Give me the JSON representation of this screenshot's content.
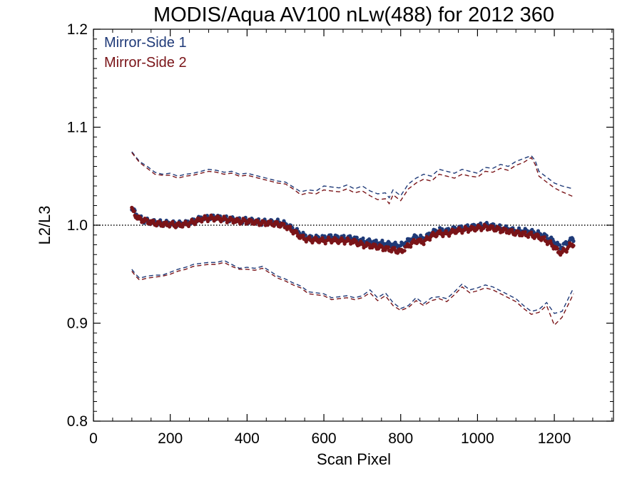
{
  "chart_data": {
    "type": "scatter",
    "title": "MODIS/Aqua AV100 nLw(488) for 2012 360",
    "xlabel": "Scan Pixel",
    "ylabel": "L2/L3",
    "xlim": [
      0,
      1354
    ],
    "ylim": [
      0.8,
      1.2
    ],
    "x_ticks": [
      "0",
      "200",
      "400",
      "600",
      "800",
      "1000",
      "1200"
    ],
    "y_ticks": [
      "0.8",
      "0.9",
      "1.0",
      "1.1",
      "1.2"
    ],
    "reference_line": 1.0,
    "grid": false,
    "legend_position": "top-left",
    "colors": {
      "ms1": "#1f3a78",
      "ms2": "#7a1418",
      "reference": "#000000"
    },
    "series": [
      {
        "name": "Mirror-Side 1",
        "color": "#1f3a78",
        "mean": {
          "x": [
            100,
            110,
            120,
            140,
            160,
            180,
            200,
            220,
            240,
            260,
            280,
            300,
            320,
            340,
            360,
            380,
            400,
            420,
            440,
            460,
            480,
            500,
            520,
            540,
            560,
            580,
            600,
            620,
            640,
            660,
            680,
            700,
            720,
            740,
            760,
            780,
            800,
            820,
            840,
            860,
            880,
            900,
            920,
            940,
            960,
            980,
            1000,
            1020,
            1040,
            1060,
            1080,
            1100,
            1120,
            1140,
            1160,
            1180,
            1200,
            1210,
            1220,
            1230,
            1240,
            1250
          ],
          "y": [
            1.017,
            1.012,
            1.007,
            1.004,
            1.003,
            1.002,
            1.002,
            1.001,
            1.002,
            1.004,
            1.007,
            1.008,
            1.008,
            1.007,
            1.006,
            1.005,
            1.005,
            1.004,
            1.003,
            1.003,
            1.003,
            1.001,
            0.996,
            0.991,
            0.987,
            0.987,
            0.987,
            0.988,
            0.987,
            0.987,
            0.986,
            0.984,
            0.983,
            0.982,
            0.981,
            0.98,
            0.979,
            0.984,
            0.988,
            0.986,
            0.992,
            0.995,
            0.994,
            0.996,
            0.997,
            0.998,
            0.999,
            1.0,
            0.999,
            0.997,
            0.996,
            0.994,
            0.994,
            0.993,
            0.991,
            0.988,
            0.983,
            0.979,
            0.978,
            0.981,
            0.984,
            0.986
          ]
        },
        "upper": {
          "x": [
            100,
            120,
            140,
            160,
            180,
            200,
            220,
            240,
            260,
            280,
            300,
            320,
            340,
            360,
            380,
            400,
            420,
            440,
            460,
            480,
            500,
            520,
            540,
            560,
            580,
            600,
            620,
            640,
            660,
            680,
            700,
            720,
            740,
            760,
            770,
            780,
            800,
            820,
            840,
            860,
            880,
            900,
            920,
            940,
            960,
            980,
            1000,
            1020,
            1040,
            1060,
            1080,
            1100,
            1120,
            1140,
            1150,
            1160,
            1180,
            1200,
            1220,
            1250
          ],
          "y": [
            1.075,
            1.065,
            1.06,
            1.054,
            1.052,
            1.053,
            1.05,
            1.052,
            1.053,
            1.055,
            1.057,
            1.056,
            1.054,
            1.055,
            1.052,
            1.053,
            1.051,
            1.049,
            1.047,
            1.045,
            1.044,
            1.039,
            1.034,
            1.036,
            1.035,
            1.04,
            1.039,
            1.038,
            1.041,
            1.037,
            1.04,
            1.035,
            1.032,
            1.033,
            1.028,
            1.036,
            1.03,
            1.042,
            1.048,
            1.052,
            1.05,
            1.057,
            1.055,
            1.053,
            1.057,
            1.055,
            1.053,
            1.059,
            1.058,
            1.062,
            1.06,
            1.065,
            1.068,
            1.071,
            1.066,
            1.055,
            1.049,
            1.043,
            1.04,
            1.037
          ]
        },
        "lower": {
          "x": [
            100,
            110,
            120,
            140,
            160,
            180,
            200,
            220,
            240,
            260,
            280,
            300,
            320,
            340,
            360,
            380,
            400,
            420,
            440,
            460,
            480,
            500,
            520,
            540,
            560,
            580,
            600,
            620,
            640,
            660,
            680,
            700,
            720,
            740,
            760,
            780,
            800,
            820,
            840,
            860,
            880,
            900,
            920,
            940,
            960,
            980,
            1000,
            1020,
            1040,
            1060,
            1080,
            1100,
            1120,
            1140,
            1160,
            1180,
            1200,
            1220,
            1250
          ],
          "y": [
            0.955,
            0.95,
            0.946,
            0.948,
            0.949,
            0.949,
            0.952,
            0.955,
            0.957,
            0.96,
            0.961,
            0.962,
            0.962,
            0.964,
            0.96,
            0.956,
            0.957,
            0.956,
            0.958,
            0.953,
            0.948,
            0.945,
            0.941,
            0.938,
            0.932,
            0.931,
            0.93,
            0.926,
            0.927,
            0.928,
            0.926,
            0.928,
            0.934,
            0.926,
            0.931,
            0.921,
            0.915,
            0.918,
            0.926,
            0.92,
            0.926,
            0.927,
            0.925,
            0.932,
            0.94,
            0.934,
            0.936,
            0.939,
            0.937,
            0.933,
            0.929,
            0.925,
            0.918,
            0.912,
            0.914,
            0.921,
            0.91,
            0.912,
            0.936
          ]
        }
      },
      {
        "name": "Mirror-Side 2",
        "color": "#7a1418",
        "mean": {
          "x": [
            100,
            110,
            120,
            140,
            160,
            180,
            200,
            220,
            240,
            260,
            280,
            300,
            320,
            340,
            360,
            380,
            400,
            420,
            440,
            460,
            480,
            500,
            520,
            540,
            560,
            580,
            600,
            620,
            640,
            660,
            680,
            700,
            720,
            740,
            760,
            780,
            800,
            820,
            840,
            860,
            880,
            900,
            920,
            940,
            960,
            980,
            1000,
            1020,
            1040,
            1060,
            1080,
            1100,
            1120,
            1140,
            1160,
            1180,
            1200,
            1210,
            1220,
            1230,
            1240,
            1250
          ],
          "y": [
            1.016,
            1.01,
            1.006,
            1.004,
            1.002,
            1.001,
            1.001,
            1.0,
            1.001,
            1.003,
            1.006,
            1.007,
            1.007,
            1.006,
            1.005,
            1.004,
            1.004,
            1.003,
            1.002,
            1.002,
            1.001,
            0.999,
            0.994,
            0.988,
            0.985,
            0.985,
            0.984,
            0.985,
            0.984,
            0.984,
            0.983,
            0.98,
            0.979,
            0.978,
            0.976,
            0.975,
            0.973,
            0.979,
            0.984,
            0.983,
            0.989,
            0.992,
            0.991,
            0.994,
            0.995,
            0.996,
            0.997,
            0.998,
            0.997,
            0.995,
            0.994,
            0.992,
            0.991,
            0.99,
            0.988,
            0.984,
            0.978,
            0.973,
            0.972,
            0.975,
            0.979,
            0.981
          ]
        },
        "upper": {
          "x": [
            100,
            120,
            140,
            160,
            180,
            200,
            220,
            240,
            260,
            280,
            300,
            320,
            340,
            360,
            380,
            400,
            420,
            440,
            460,
            480,
            500,
            520,
            540,
            560,
            580,
            600,
            620,
            640,
            660,
            680,
            700,
            720,
            740,
            760,
            770,
            780,
            800,
            820,
            840,
            860,
            880,
            900,
            920,
            940,
            960,
            980,
            1000,
            1020,
            1040,
            1060,
            1080,
            1100,
            1120,
            1140,
            1150,
            1160,
            1180,
            1200,
            1220,
            1250
          ],
          "y": [
            1.074,
            1.064,
            1.058,
            1.052,
            1.051,
            1.051,
            1.048,
            1.05,
            1.051,
            1.053,
            1.055,
            1.054,
            1.052,
            1.053,
            1.05,
            1.051,
            1.049,
            1.047,
            1.045,
            1.043,
            1.042,
            1.037,
            1.031,
            1.033,
            1.032,
            1.036,
            1.035,
            1.034,
            1.037,
            1.033,
            1.035,
            1.03,
            1.026,
            1.027,
            1.022,
            1.031,
            1.025,
            1.037,
            1.043,
            1.047,
            1.045,
            1.052,
            1.05,
            1.048,
            1.052,
            1.05,
            1.049,
            1.055,
            1.054,
            1.058,
            1.056,
            1.061,
            1.064,
            1.069,
            1.062,
            1.05,
            1.044,
            1.038,
            1.034,
            1.029
          ]
        },
        "lower": {
          "x": [
            100,
            110,
            120,
            140,
            160,
            180,
            200,
            220,
            240,
            260,
            280,
            300,
            320,
            340,
            360,
            380,
            400,
            420,
            440,
            460,
            480,
            500,
            520,
            540,
            560,
            580,
            600,
            620,
            640,
            660,
            680,
            700,
            720,
            740,
            760,
            780,
            800,
            820,
            840,
            860,
            880,
            900,
            920,
            940,
            960,
            980,
            1000,
            1020,
            1040,
            1060,
            1080,
            1100,
            1120,
            1140,
            1160,
            1180,
            1200,
            1220,
            1250
          ],
          "y": [
            0.953,
            0.948,
            0.944,
            0.946,
            0.947,
            0.948,
            0.95,
            0.953,
            0.955,
            0.958,
            0.959,
            0.96,
            0.96,
            0.962,
            0.958,
            0.955,
            0.955,
            0.954,
            0.956,
            0.951,
            0.946,
            0.943,
            0.939,
            0.936,
            0.93,
            0.929,
            0.928,
            0.924,
            0.925,
            0.926,
            0.924,
            0.926,
            0.931,
            0.923,
            0.928,
            0.918,
            0.913,
            0.916,
            0.923,
            0.918,
            0.923,
            0.925,
            0.922,
            0.929,
            0.937,
            0.931,
            0.933,
            0.936,
            0.934,
            0.93,
            0.926,
            0.922,
            0.915,
            0.909,
            0.911,
            0.918,
            0.898,
            0.906,
            0.93
          ]
        }
      }
    ]
  }
}
